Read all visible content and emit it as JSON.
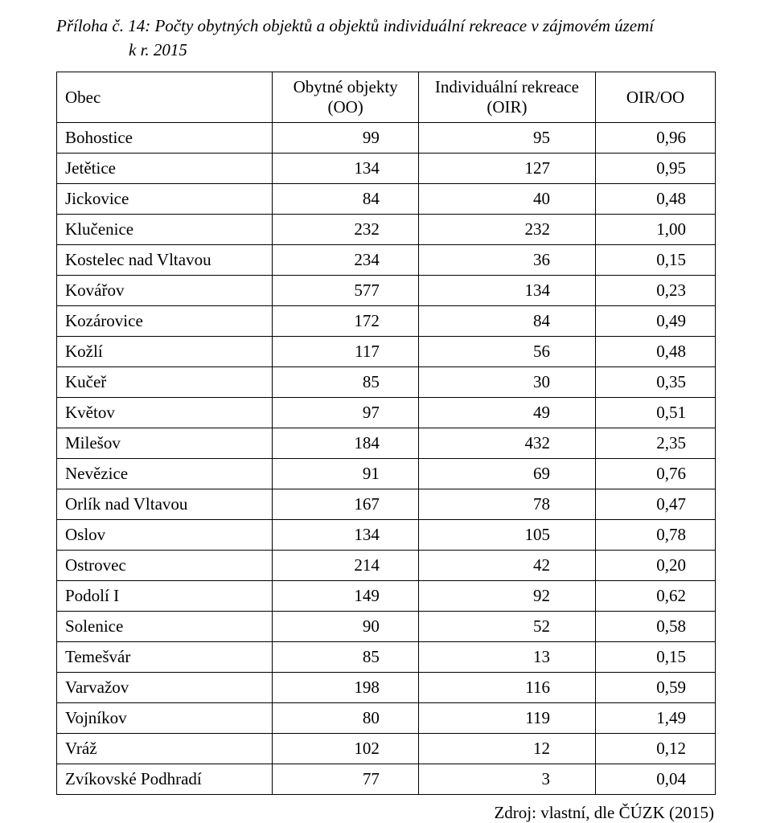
{
  "title_line1": "Příloha č. 14: Počty obytných objektů a objektů individuální rekreace v zájmovém území",
  "title_line2": "k r. 2015",
  "table": {
    "headers": {
      "obec": "Obec",
      "oo_line1": "Obytné objekty",
      "oo_line2": "(OO)",
      "oir_line1": "Individuální rekreace",
      "oir_line2": "(OIR)",
      "ratio": "OIR/OO"
    },
    "rows": [
      {
        "obec": "Bohostice",
        "oo": "99",
        "oir": "95",
        "ratio": "0,96"
      },
      {
        "obec": "Jetětice",
        "oo": "134",
        "oir": "127",
        "ratio": "0,95"
      },
      {
        "obec": "Jickovice",
        "oo": "84",
        "oir": "40",
        "ratio": "0,48"
      },
      {
        "obec": "Klučenice",
        "oo": "232",
        "oir": "232",
        "ratio": "1,00"
      },
      {
        "obec": "Kostelec nad Vltavou",
        "oo": "234",
        "oir": "36",
        "ratio": "0,15"
      },
      {
        "obec": "Kovářov",
        "oo": "577",
        "oir": "134",
        "ratio": "0,23"
      },
      {
        "obec": "Kozárovice",
        "oo": "172",
        "oir": "84",
        "ratio": "0,49"
      },
      {
        "obec": "Kožlí",
        "oo": "117",
        "oir": "56",
        "ratio": "0,48"
      },
      {
        "obec": "Kučeř",
        "oo": "85",
        "oir": "30",
        "ratio": "0,35"
      },
      {
        "obec": "Květov",
        "oo": "97",
        "oir": "49",
        "ratio": "0,51"
      },
      {
        "obec": "Milešov",
        "oo": "184",
        "oir": "432",
        "ratio": "2,35"
      },
      {
        "obec": "Nevězice",
        "oo": "91",
        "oir": "69",
        "ratio": "0,76"
      },
      {
        "obec": "Orlík nad Vltavou",
        "oo": "167",
        "oir": "78",
        "ratio": "0,47"
      },
      {
        "obec": "Oslov",
        "oo": "134",
        "oir": "105",
        "ratio": "0,78"
      },
      {
        "obec": "Ostrovec",
        "oo": "214",
        "oir": "42",
        "ratio": "0,20"
      },
      {
        "obec": "Podolí I",
        "oo": "149",
        "oir": "92",
        "ratio": "0,62"
      },
      {
        "obec": "Solenice",
        "oo": "90",
        "oir": "52",
        "ratio": "0,58"
      },
      {
        "obec": "Temešvár",
        "oo": "85",
        "oir": "13",
        "ratio": "0,15"
      },
      {
        "obec": "Varvažov",
        "oo": "198",
        "oir": "116",
        "ratio": "0,59"
      },
      {
        "obec": "Vojníkov",
        "oo": "80",
        "oir": "119",
        "ratio": "1,49"
      },
      {
        "obec": "Vráž",
        "oo": "102",
        "oir": "12",
        "ratio": "0,12"
      },
      {
        "obec": "Zvíkovské Podhradí",
        "oo": "77",
        "oir": "3",
        "ratio": "0,04"
      }
    ]
  },
  "source": "Zdroj: vlastní, dle ČÚZK (2015)"
}
